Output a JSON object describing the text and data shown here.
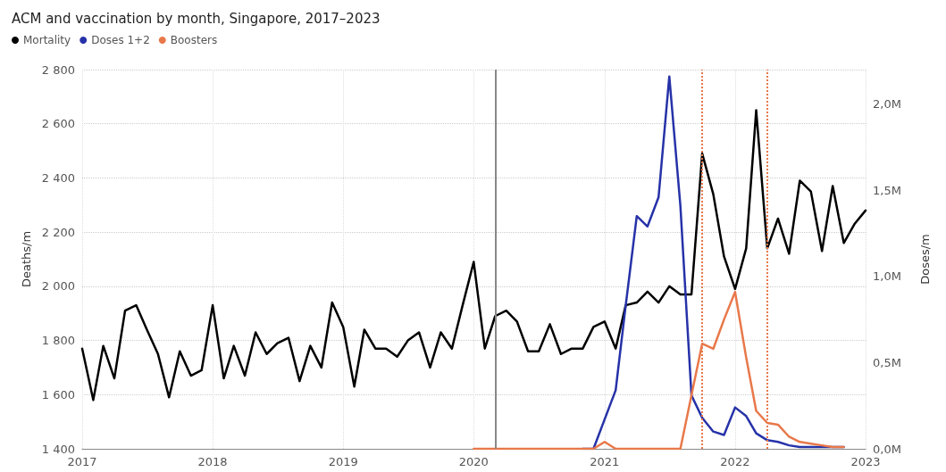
{
  "chart_data": {
    "type": "line",
    "title": "ACM and vaccination by month, Singapore, 2017–2023",
    "ylabel": "Deaths/m",
    "y2label": "Doses/m",
    "xlim": [
      "2017-01",
      "2023-01"
    ],
    "xticks": [
      {
        "value": "2017",
        "label": "2017"
      },
      {
        "value": "2018",
        "label": "2018"
      },
      {
        "value": "2019",
        "label": "2019"
      },
      {
        "value": "2020",
        "label": "2020"
      },
      {
        "value": "2021",
        "label": "2021"
      },
      {
        "value": "2022",
        "label": "2022"
      },
      {
        "value": "2023",
        "label": "2023"
      }
    ],
    "ylim": [
      1400,
      2800
    ],
    "yticks": [
      {
        "value": 1400,
        "label": "1 400"
      },
      {
        "value": 1600,
        "label": "1 600"
      },
      {
        "value": 1800,
        "label": "1 800"
      },
      {
        "value": 2000,
        "label": "2 000"
      },
      {
        "value": 2200,
        "label": "2 200"
      },
      {
        "value": 2400,
        "label": "2 400"
      },
      {
        "value": 2600,
        "label": "2 600"
      },
      {
        "value": 2800,
        "label": "2 800"
      }
    ],
    "y2lim": [
      0,
      2.2
    ],
    "y2ticks": [
      {
        "value": 0,
        "label": "0,0M"
      },
      {
        "value": 0.5,
        "label": "0,5M"
      },
      {
        "value": 1,
        "label": "1,0M"
      },
      {
        "value": 1.5,
        "label": "1,5M"
      },
      {
        "value": 2,
        "label": "2,0M"
      }
    ],
    "grid": true,
    "legend": "top left",
    "marker": "none",
    "line_style": "solid",
    "series": [
      {
        "name": "Mortality",
        "color": "#000000",
        "x": [
          "2017-01",
          "2017-02",
          "2017-03",
          "2017-04",
          "2017-05",
          "2017-06",
          "2017-07",
          "2017-08",
          "2017-09",
          "2017-10",
          "2017-11",
          "2017-12",
          "2018-01",
          "2018-02",
          "2018-03",
          "2018-04",
          "2018-05",
          "2018-06",
          "2018-07",
          "2018-08",
          "2018-09",
          "2018-10",
          "2018-11",
          "2018-12",
          "2019-01",
          "2019-02",
          "2019-03",
          "2019-04",
          "2019-05",
          "2019-06",
          "2019-07",
          "2019-08",
          "2019-09",
          "2019-10",
          "2019-11",
          "2019-12",
          "2020-01",
          "2020-02",
          "2020-03",
          "2020-04",
          "2020-05",
          "2020-06",
          "2020-07",
          "2020-08",
          "2020-09",
          "2020-10",
          "2020-11",
          "2020-12",
          "2021-01",
          "2021-02",
          "2021-03",
          "2021-04",
          "2021-05",
          "2021-06",
          "2021-07",
          "2021-08",
          "2021-09",
          "2021-10",
          "2021-11",
          "2021-12",
          "2022-01",
          "2022-02",
          "2022-03",
          "2022-04",
          "2022-05",
          "2022-06",
          "2022-07",
          "2022-08",
          "2022-09",
          "2022-10",
          "2022-11",
          "2022-12",
          "2023-01"
        ],
        "values": [
          1770,
          1580,
          1780,
          1660,
          1910,
          1930,
          1840,
          1750,
          1590,
          1760,
          1670,
          1690,
          1930,
          1660,
          1780,
          1670,
          1830,
          1750,
          1790,
          1810,
          1650,
          1780,
          1700,
          1940,
          1850,
          1630,
          1840,
          1770,
          1770,
          1740,
          1800,
          1830,
          1700,
          1830,
          1770,
          1930,
          2090,
          1770,
          1890,
          1910,
          1870,
          1760,
          1760,
          1860,
          1750,
          1770,
          1770,
          1850,
          1870,
          1770,
          1930,
          1940,
          1980,
          1940,
          2000,
          1970,
          1970,
          2490,
          2340,
          2110,
          1990,
          2140,
          2650,
          2140,
          2250,
          2120,
          2390,
          2350,
          2130,
          2370,
          2160,
          2230,
          2280
        ]
      },
      {
        "name": "Doses 1+2",
        "color": "#2632a8",
        "axis": "y2",
        "x": [
          "2020-11",
          "2020-12",
          "2021-01",
          "2021-02",
          "2021-03",
          "2021-04",
          "2021-05",
          "2021-06",
          "2021-07",
          "2021-08",
          "2021-09",
          "2021-10",
          "2021-11",
          "2021-12",
          "2022-01",
          "2022-02",
          "2022-03",
          "2022-04",
          "2022-05",
          "2022-06",
          "2022-07",
          "2022-08",
          "2022-09",
          "2022-10",
          "2022-11"
        ],
        "values": [
          0,
          0,
          0.17,
          0.34,
          0.83,
          1.35,
          1.29,
          1.46,
          2.16,
          1.41,
          0.31,
          0.18,
          0.1,
          0.08,
          0.24,
          0.19,
          0.09,
          0.05,
          0.04,
          0.02,
          0.01,
          0.01,
          0.01,
          0.01,
          0.01
        ]
      },
      {
        "name": "Boosters",
        "color": "#e8784a",
        "axis": "y2",
        "x": [
          "2020-01",
          "2020-02",
          "2020-03",
          "2020-04",
          "2020-05",
          "2020-06",
          "2020-07",
          "2020-08",
          "2020-09",
          "2020-10",
          "2020-11",
          "2020-12",
          "2021-01",
          "2021-02",
          "2021-03",
          "2021-04",
          "2021-05",
          "2021-06",
          "2021-07",
          "2021-08",
          "2021-09",
          "2021-10",
          "2021-11",
          "2021-12",
          "2022-01",
          "2022-02",
          "2022-03",
          "2022-04",
          "2022-05",
          "2022-06",
          "2022-07",
          "2022-08",
          "2022-09",
          "2022-10",
          "2022-11"
        ],
        "values": [
          0,
          0,
          0,
          0,
          0,
          0,
          0,
          0,
          0,
          0,
          0,
          0,
          0.04,
          0,
          0,
          0,
          0,
          0,
          0,
          0,
          0.31,
          0.61,
          0.58,
          0.75,
          0.91,
          0.53,
          0.22,
          0.15,
          0.14,
          0.07,
          0.04,
          0.03,
          0.02,
          0.01,
          0.01
        ]
      }
    ],
    "ref_lines": [
      {
        "axis": "x",
        "value": "2020-03",
        "color": "#888888",
        "line_style": "solid"
      },
      {
        "axis": "x",
        "value": "2021-10",
        "color": "#e8784a",
        "line_style": "dotted"
      },
      {
        "axis": "x",
        "value": "2022-04",
        "color": "#e8784a",
        "line_style": "dotted"
      }
    ]
  }
}
